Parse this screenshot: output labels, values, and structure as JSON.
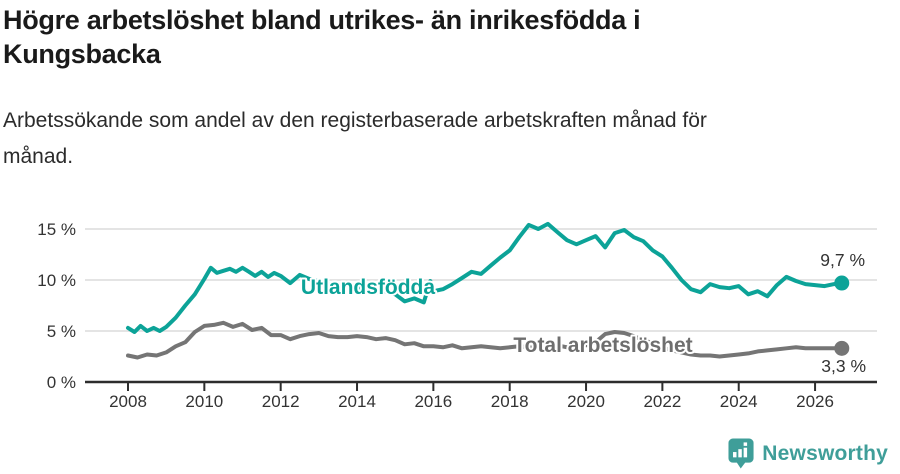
{
  "header": {
    "title_lines": [
      "Högre arbetslöshet bland utrikes- än inrikesfödda i",
      "Kungsbacka"
    ],
    "subtitle_lines": [
      "Arbetssökande som andel av den registerbaserade arbetskraften månad för",
      "månad."
    ]
  },
  "footer": {
    "brand": "Newsworthy",
    "brand_color": "#3f9e99",
    "logo_icon": "newsworthy-pin-barchart-icon"
  },
  "chart_data": {
    "type": "line",
    "title": "Högre arbetslöshet bland utrikes- än inrikesfödda i Kungsbacka",
    "subtitle": "Arbetssökande som andel av den registerbaserade arbetskraften månad för månad.",
    "xlabel": "",
    "ylabel": "",
    "unit": "%",
    "grid": "horizontal-light",
    "legend": "inline-labels",
    "xlim": [
      2008,
      2026.8
    ],
    "ylim": [
      0,
      16.5
    ],
    "x_ticks": [
      2008,
      2010,
      2012,
      2014,
      2016,
      2018,
      2020,
      2022,
      2024,
      2026
    ],
    "y_ticks": [
      0,
      5,
      10,
      15
    ],
    "y_tick_labels": [
      "0 %",
      "5 %",
      "10 %",
      "15 %"
    ],
    "colors": {
      "grid": "#e4e4e4",
      "axis": "#2d2d2d",
      "tick_text": "#333333"
    },
    "series": [
      {
        "name": "Utlandsfödda",
        "color": "#0ca398",
        "label_color": "#0ca398",
        "end_label": "9,7 %",
        "end_value": 9.7,
        "points": [
          [
            2008.0,
            5.3
          ],
          [
            2008.17,
            4.9
          ],
          [
            2008.33,
            5.5
          ],
          [
            2008.5,
            5.0
          ],
          [
            2008.67,
            5.3
          ],
          [
            2008.83,
            5.0
          ],
          [
            2009.0,
            5.4
          ],
          [
            2009.25,
            6.3
          ],
          [
            2009.5,
            7.5
          ],
          [
            2009.75,
            8.6
          ],
          [
            2010.0,
            10.1
          ],
          [
            2010.17,
            11.2
          ],
          [
            2010.33,
            10.7
          ],
          [
            2010.5,
            10.9
          ],
          [
            2010.67,
            11.1
          ],
          [
            2010.83,
            10.8
          ],
          [
            2011.0,
            11.2
          ],
          [
            2011.17,
            10.8
          ],
          [
            2011.33,
            10.4
          ],
          [
            2011.5,
            10.8
          ],
          [
            2011.67,
            10.3
          ],
          [
            2011.83,
            10.7
          ],
          [
            2012.0,
            10.4
          ],
          [
            2012.25,
            9.7
          ],
          [
            2012.5,
            10.5
          ],
          [
            2012.75,
            10.1
          ],
          [
            2013.0,
            9.9
          ],
          [
            2013.25,
            9.6
          ],
          [
            2013.5,
            9.3
          ],
          [
            2013.75,
            9.6
          ],
          [
            2014.0,
            9.4
          ],
          [
            2014.25,
            9.0
          ],
          [
            2014.5,
            8.8
          ],
          [
            2014.75,
            8.9
          ],
          [
            2015.0,
            8.6
          ],
          [
            2015.25,
            7.9
          ],
          [
            2015.5,
            8.2
          ],
          [
            2015.75,
            7.8
          ],
          [
            2015.92,
            9.9
          ],
          [
            2016.0,
            8.9
          ],
          [
            2016.25,
            9.1
          ],
          [
            2016.5,
            9.6
          ],
          [
            2016.75,
            10.2
          ],
          [
            2017.0,
            10.8
          ],
          [
            2017.25,
            10.6
          ],
          [
            2017.5,
            11.4
          ],
          [
            2017.75,
            12.2
          ],
          [
            2018.0,
            12.9
          ],
          [
            2018.25,
            14.2
          ],
          [
            2018.5,
            15.4
          ],
          [
            2018.75,
            15.0
          ],
          [
            2019.0,
            15.5
          ],
          [
            2019.25,
            14.7
          ],
          [
            2019.5,
            13.9
          ],
          [
            2019.75,
            13.5
          ],
          [
            2020.0,
            13.9
          ],
          [
            2020.25,
            14.3
          ],
          [
            2020.5,
            13.2
          ],
          [
            2020.75,
            14.6
          ],
          [
            2021.0,
            14.9
          ],
          [
            2021.25,
            14.2
          ],
          [
            2021.5,
            13.8
          ],
          [
            2021.75,
            12.9
          ],
          [
            2022.0,
            12.3
          ],
          [
            2022.25,
            11.2
          ],
          [
            2022.5,
            10.0
          ],
          [
            2022.75,
            9.1
          ],
          [
            2023.0,
            8.8
          ],
          [
            2023.25,
            9.6
          ],
          [
            2023.5,
            9.3
          ],
          [
            2023.75,
            9.2
          ],
          [
            2024.0,
            9.4
          ],
          [
            2024.25,
            8.6
          ],
          [
            2024.5,
            8.9
          ],
          [
            2024.75,
            8.4
          ],
          [
            2025.0,
            9.5
          ],
          [
            2025.25,
            10.3
          ],
          [
            2025.5,
            9.9
          ],
          [
            2025.75,
            9.6
          ],
          [
            2026.0,
            9.5
          ],
          [
            2026.25,
            9.4
          ],
          [
            2026.5,
            9.6
          ],
          [
            2026.7,
            9.7
          ]
        ]
      },
      {
        "name": "Total arbetslöshet",
        "color": "#757575",
        "label_color": "#6e6e6e",
        "end_label": "3,3 %",
        "end_value": 3.3,
        "points": [
          [
            2008.0,
            2.6
          ],
          [
            2008.25,
            2.4
          ],
          [
            2008.5,
            2.7
          ],
          [
            2008.75,
            2.6
          ],
          [
            2009.0,
            2.9
          ],
          [
            2009.25,
            3.5
          ],
          [
            2009.5,
            3.9
          ],
          [
            2009.75,
            4.9
          ],
          [
            2010.0,
            5.5
          ],
          [
            2010.25,
            5.6
          ],
          [
            2010.5,
            5.8
          ],
          [
            2010.75,
            5.4
          ],
          [
            2011.0,
            5.7
          ],
          [
            2011.25,
            5.1
          ],
          [
            2011.5,
            5.3
          ],
          [
            2011.75,
            4.6
          ],
          [
            2012.0,
            4.6
          ],
          [
            2012.25,
            4.2
          ],
          [
            2012.5,
            4.5
          ],
          [
            2012.75,
            4.7
          ],
          [
            2013.0,
            4.8
          ],
          [
            2013.25,
            4.5
          ],
          [
            2013.5,
            4.4
          ],
          [
            2013.75,
            4.4
          ],
          [
            2014.0,
            4.5
          ],
          [
            2014.25,
            4.4
          ],
          [
            2014.5,
            4.2
          ],
          [
            2014.75,
            4.3
          ],
          [
            2015.0,
            4.1
          ],
          [
            2015.25,
            3.7
          ],
          [
            2015.5,
            3.8
          ],
          [
            2015.75,
            3.5
          ],
          [
            2016.0,
            3.5
          ],
          [
            2016.25,
            3.4
          ],
          [
            2016.5,
            3.6
          ],
          [
            2016.75,
            3.3
          ],
          [
            2017.0,
            3.4
          ],
          [
            2017.25,
            3.5
          ],
          [
            2017.5,
            3.4
          ],
          [
            2017.75,
            3.3
          ],
          [
            2018.0,
            3.4
          ],
          [
            2018.25,
            3.5
          ],
          [
            2018.5,
            3.4
          ],
          [
            2018.75,
            3.3
          ],
          [
            2019.0,
            3.4
          ],
          [
            2019.25,
            3.6
          ],
          [
            2019.5,
            3.4
          ],
          [
            2019.75,
            3.5
          ],
          [
            2020.0,
            3.6
          ],
          [
            2020.25,
            3.9
          ],
          [
            2020.5,
            4.7
          ],
          [
            2020.75,
            4.9
          ],
          [
            2021.0,
            4.8
          ],
          [
            2021.25,
            4.5
          ],
          [
            2021.5,
            4.1
          ],
          [
            2021.75,
            3.8
          ],
          [
            2022.0,
            3.4
          ],
          [
            2022.25,
            3.1
          ],
          [
            2022.5,
            2.9
          ],
          [
            2022.75,
            2.7
          ],
          [
            2023.0,
            2.6
          ],
          [
            2023.25,
            2.6
          ],
          [
            2023.5,
            2.5
          ],
          [
            2023.75,
            2.6
          ],
          [
            2024.0,
            2.7
          ],
          [
            2024.25,
            2.8
          ],
          [
            2024.5,
            3.0
          ],
          [
            2024.75,
            3.1
          ],
          [
            2025.0,
            3.2
          ],
          [
            2025.25,
            3.3
          ],
          [
            2025.5,
            3.4
          ],
          [
            2025.75,
            3.3
          ],
          [
            2026.0,
            3.3
          ],
          [
            2026.25,
            3.3
          ],
          [
            2026.5,
            3.3
          ],
          [
            2026.7,
            3.3
          ]
        ]
      }
    ]
  }
}
